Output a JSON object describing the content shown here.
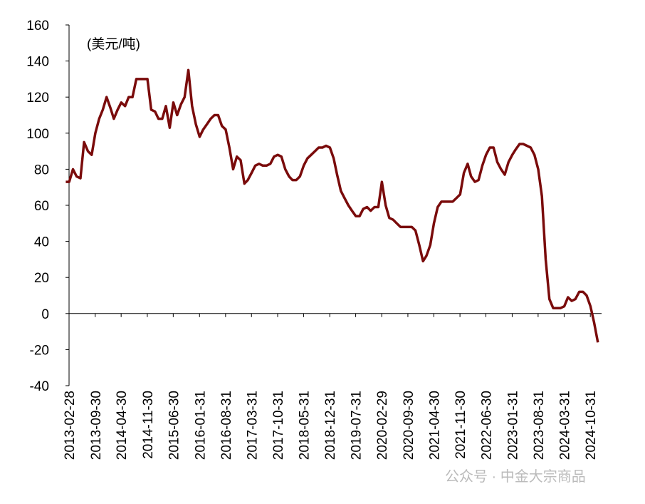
{
  "chart_data": {
    "type": "line",
    "y_label": "(美元/吨)",
    "watermark": "公众号 · 中金大宗商品",
    "color": "#7a0b0b",
    "xlim": [
      "2013-02-28",
      "2025-01-31"
    ],
    "xticks": [
      "2013-02-28",
      "2013-09-30",
      "2014-04-30",
      "2014-11-30",
      "2015-06-30",
      "2016-01-31",
      "2016-08-31",
      "2017-03-31",
      "2017-10-31",
      "2018-05-31",
      "2018-12-31",
      "2019-07-31",
      "2020-02-29",
      "2020-09-30",
      "2021-04-30",
      "2021-11-30",
      "2022-06-30",
      "2023-01-31",
      "2023-08-31",
      "2024-03-31",
      "2024-10-31"
    ],
    "ylim": [
      -40,
      160
    ],
    "yticks": [
      -40,
      -20,
      0,
      20,
      40,
      60,
      80,
      100,
      120,
      140,
      160
    ],
    "x": [
      "2013-02",
      "2013-03",
      "2013-04",
      "2013-05",
      "2013-06",
      "2013-07",
      "2013-08",
      "2013-09",
      "2013-10",
      "2013-11",
      "2013-12",
      "2014-01",
      "2014-02",
      "2014-03",
      "2014-04",
      "2014-05",
      "2014-06",
      "2014-07",
      "2014-08",
      "2014-09",
      "2014-10",
      "2014-11",
      "2014-12",
      "2015-01",
      "2015-02",
      "2015-03",
      "2015-04",
      "2015-05",
      "2015-06",
      "2015-07",
      "2015-08",
      "2015-09",
      "2015-10",
      "2015-11",
      "2015-12",
      "2016-01",
      "2016-02",
      "2016-03",
      "2016-04",
      "2016-05",
      "2016-06",
      "2016-07",
      "2016-08",
      "2016-09",
      "2016-10",
      "2016-11",
      "2016-12",
      "2017-01",
      "2017-02",
      "2017-03",
      "2017-04",
      "2017-05",
      "2017-06",
      "2017-07",
      "2017-08",
      "2017-09",
      "2017-10",
      "2017-11",
      "2017-12",
      "2018-01",
      "2018-02",
      "2018-03",
      "2018-04",
      "2018-05",
      "2018-06",
      "2018-07",
      "2018-08",
      "2018-09",
      "2018-10",
      "2018-11",
      "2018-12",
      "2019-01",
      "2019-02",
      "2019-03",
      "2019-04",
      "2019-05",
      "2019-06",
      "2019-07",
      "2019-08",
      "2019-09",
      "2019-10",
      "2019-11",
      "2019-12",
      "2020-01",
      "2020-02",
      "2020-03",
      "2020-04",
      "2020-05",
      "2020-06",
      "2020-07",
      "2020-08",
      "2020-09",
      "2020-10",
      "2020-11",
      "2020-12",
      "2021-01",
      "2021-02",
      "2021-03",
      "2021-04",
      "2021-05",
      "2021-06",
      "2021-07",
      "2021-08",
      "2021-09",
      "2021-10",
      "2021-11",
      "2021-12",
      "2022-01",
      "2022-02",
      "2022-03",
      "2022-04",
      "2022-05",
      "2022-06",
      "2022-07",
      "2022-08",
      "2022-09",
      "2022-10",
      "2022-11",
      "2022-12",
      "2023-01",
      "2023-02",
      "2023-03",
      "2023-04",
      "2023-05",
      "2023-06",
      "2023-07",
      "2023-08",
      "2023-09",
      "2023-10",
      "2023-11",
      "2023-12",
      "2024-01",
      "2024-02",
      "2024-03",
      "2024-04",
      "2024-05",
      "2024-06",
      "2024-07",
      "2024-08",
      "2024-09",
      "2024-10",
      "2024-11",
      "2024-12",
      "2025-01"
    ],
    "values": [
      73,
      73,
      80,
      76,
      75,
      95,
      90,
      88,
      100,
      108,
      113,
      120,
      114,
      108,
      113,
      117,
      115,
      120,
      120,
      130,
      130,
      130,
      130,
      113,
      112,
      108,
      108,
      115,
      103,
      117,
      110,
      116,
      120,
      135,
      115,
      105,
      98,
      102,
      105,
      108,
      110,
      110,
      104,
      102,
      92,
      80,
      87,
      85,
      72,
      74,
      78,
      82,
      83,
      82,
      82,
      83,
      87,
      88,
      87,
      80,
      76,
      74,
      74,
      76,
      82,
      86,
      88,
      90,
      92,
      92,
      93,
      92,
      86,
      77,
      68,
      64,
      60,
      57,
      54,
      54,
      58,
      59,
      57,
      59,
      59,
      73,
      60,
      53,
      52,
      50,
      48,
      48,
      48,
      48,
      46,
      38,
      29,
      32,
      38,
      50,
      59,
      62,
      62,
      62,
      62,
      64,
      66,
      78,
      83,
      76,
      73,
      74,
      82,
      88,
      92,
      92,
      84,
      80,
      77,
      84,
      88,
      91,
      94,
      94,
      93,
      92,
      88,
      80,
      65,
      30,
      8,
      3,
      3,
      3,
      4,
      9,
      7,
      8,
      12,
      12,
      10,
      4,
      -5,
      -16
    ]
  }
}
